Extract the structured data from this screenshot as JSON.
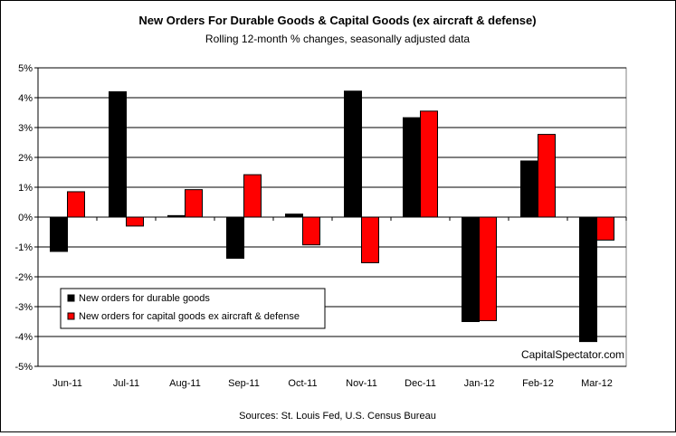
{
  "chart_data": {
    "type": "bar",
    "title": "New Orders For Durable Goods & Capital Goods (ex aircraft & defense)",
    "subtitle": "Rolling 12-month % changes, seasonally adjusted data",
    "categories": [
      "Jun-11",
      "Jul-11",
      "Aug-11",
      "Sep-11",
      "Oct-11",
      "Nov-11",
      "Dec-11",
      "Jan-12",
      "Feb-12",
      "Mar-12"
    ],
    "series": [
      {
        "name": "New orders for durable goods",
        "color": "#000000",
        "values": [
          -1.15,
          4.2,
          0.05,
          -1.38,
          0.1,
          4.22,
          3.33,
          -3.5,
          1.88,
          -4.17
        ]
      },
      {
        "name": "New orders for capital goods ex aircraft & defense",
        "color": "#ff0000",
        "values": [
          0.85,
          -0.3,
          0.92,
          1.42,
          -0.93,
          -1.53,
          3.55,
          -3.47,
          2.77,
          -0.77
        ]
      }
    ],
    "y_ticks": [
      "5%",
      "4%",
      "3%",
      "2%",
      "1%",
      "0%",
      "-1%",
      "-2%",
      "-3%",
      "-4%",
      "-5%"
    ],
    "ylim": [
      -5,
      5
    ],
    "grid": true,
    "legend_position": "lower-left",
    "watermark": "CapitalSpectator.com",
    "source": "Sources: St. Louis Fed, U.S. Census Bureau"
  }
}
